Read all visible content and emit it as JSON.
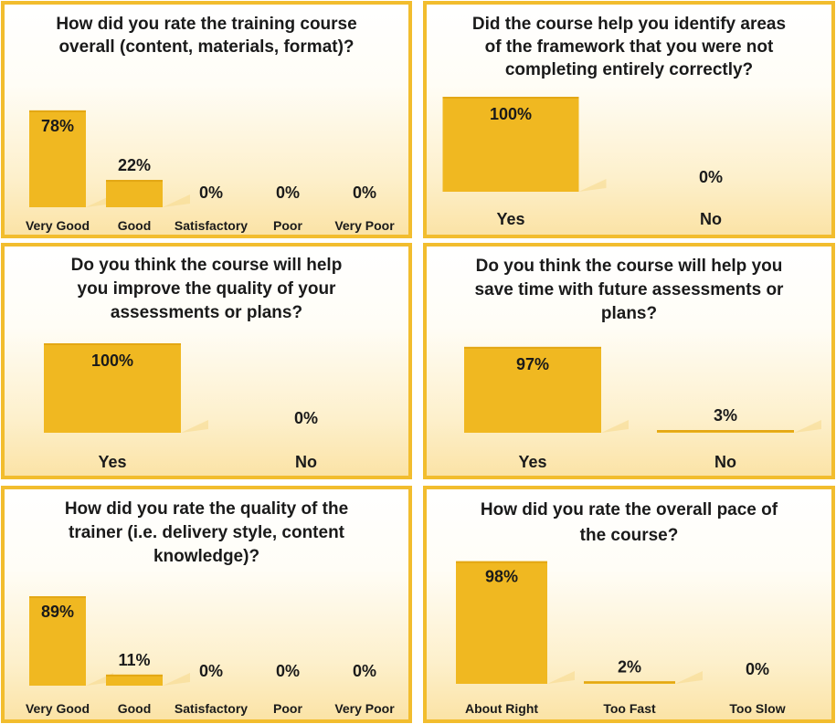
{
  "theme": {
    "bar_color": "#f0b821",
    "bar_shade": "#e3a714",
    "border_color": "#f2bd2e",
    "alt_label_color": "#a57c00"
  },
  "chart_data": [
    {
      "type": "bar",
      "title": [
        "How did you rate the training course",
        "overall (content, materials, format)?"
      ],
      "categories": [
        "Very Good",
        "Good",
        "Satisfactory",
        "Poor",
        "Very Poor"
      ],
      "values": [
        78,
        22,
        0,
        0,
        0
      ],
      "data_labels": [
        "78%",
        "22%",
        "0%",
        "0%",
        "0%"
      ],
      "ylim": [
        0,
        100
      ]
    },
    {
      "type": "bar",
      "title": [
        "Did the course help you identify areas",
        "of the framework that you were not",
        "completing entirely correctly?"
      ],
      "categories": [
        "Yes",
        "No"
      ],
      "values": [
        100,
        0
      ],
      "data_labels": [
        "100%",
        "0%"
      ],
      "ylim": [
        0,
        100
      ]
    },
    {
      "type": "bar",
      "title": [
        "Do you think the course will help",
        "you improve the quality of your",
        "assessments or plans?"
      ],
      "categories": [
        "Yes",
        "No"
      ],
      "values": [
        100,
        0
      ],
      "data_labels": [
        "100%",
        "0%"
      ],
      "ylim": [
        0,
        100
      ]
    },
    {
      "type": "bar",
      "title": [
        "Do you think the course will help you",
        "save time with future assessments or",
        "plans?"
      ],
      "categories": [
        "Yes",
        "No"
      ],
      "values": [
        97,
        3
      ],
      "data_labels": [
        "97%",
        "3%"
      ],
      "ylim": [
        0,
        100
      ]
    },
    {
      "type": "bar",
      "title": [
        "How did you rate the quality of the",
        "trainer (i.e. delivery style, content",
        "knowledge)?"
      ],
      "categories": [
        "Very Good",
        "Good",
        "Satisfactory",
        "Poor",
        "Very Poor"
      ],
      "values": [
        89,
        11,
        0,
        0,
        0
      ],
      "data_labels": [
        "89%",
        "11%",
        "0%",
        "0%",
        "0%"
      ],
      "ylim": [
        0,
        100
      ]
    },
    {
      "type": "bar",
      "title": [
        "How did you rate the overall pace of",
        "the course?"
      ],
      "categories": [
        "About Right",
        "Too Fast",
        "Too Slow"
      ],
      "values": [
        98,
        2,
        0
      ],
      "data_labels": [
        "98%",
        "2%",
        "0%"
      ],
      "ylim": [
        0,
        100
      ]
    }
  ]
}
